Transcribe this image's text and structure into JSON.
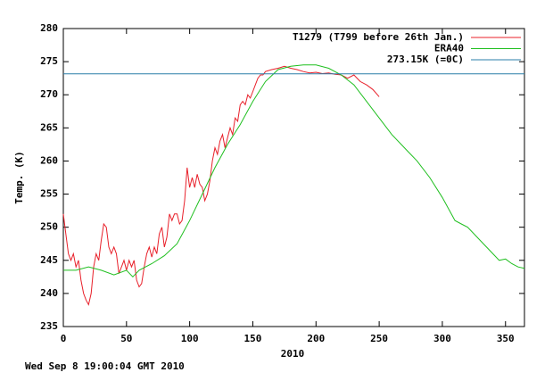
{
  "chart_data": {
    "type": "line",
    "xlabel": "2010",
    "ylabel": "Temp. (K)",
    "footer": "Wed Sep  8 19:00:04 GMT 2010",
    "xlim": [
      0,
      365
    ],
    "ylim": [
      235,
      280
    ],
    "xticks": [
      0,
      50,
      100,
      150,
      200,
      250,
      300,
      350
    ],
    "yticks": [
      235,
      240,
      245,
      250,
      255,
      260,
      265,
      270,
      275,
      280
    ],
    "grid": false,
    "legend": "top-right",
    "series": [
      {
        "name": "T1279 (T799 before 26th Jan.)",
        "color": "#e8202a",
        "x": [
          0,
          2,
          4,
          6,
          8,
          10,
          12,
          14,
          16,
          18,
          20,
          22,
          24,
          26,
          28,
          30,
          32,
          34,
          36,
          38,
          40,
          42,
          44,
          46,
          48,
          50,
          52,
          54,
          56,
          58,
          60,
          62,
          64,
          66,
          68,
          70,
          72,
          74,
          76,
          78,
          80,
          82,
          84,
          86,
          88,
          90,
          92,
          94,
          96,
          98,
          100,
          102,
          104,
          106,
          108,
          110,
          112,
          114,
          116,
          118,
          120,
          122,
          124,
          126,
          128,
          130,
          132,
          134,
          136,
          138,
          140,
          142,
          144,
          146,
          148,
          150,
          152,
          154,
          156,
          158,
          160,
          165,
          170,
          175,
          180,
          185,
          190,
          195,
          200,
          205,
          210,
          215,
          220,
          225,
          230,
          235,
          240,
          245,
          250
        ],
        "values": [
          252,
          249,
          246,
          245,
          246,
          244,
          245,
          242,
          240,
          239,
          238.3,
          240,
          244,
          246,
          245,
          248,
          250.5,
          250,
          247,
          246,
          247,
          246,
          243,
          244,
          245,
          243.5,
          245,
          244,
          245,
          242,
          241,
          241.5,
          244,
          246,
          247,
          245.5,
          247,
          246,
          249,
          250,
          247,
          248.5,
          252,
          251,
          252,
          252,
          250.5,
          251,
          254,
          259,
          256,
          257.5,
          256,
          258,
          256.5,
          256,
          254,
          255,
          257,
          260,
          262,
          261,
          263,
          264,
          262,
          263.5,
          265,
          264,
          266.5,
          266,
          268.5,
          269,
          268.5,
          270,
          269.5,
          270.5,
          271.5,
          272.5,
          273,
          273,
          273.5,
          273.8,
          274,
          274.3,
          274,
          273.8,
          273.5,
          273.3,
          273.4,
          273.2,
          273.3,
          273.1,
          273,
          272.5,
          273,
          272,
          271.5,
          270.8,
          269.7
        ]
      },
      {
        "name": "ERA40",
        "color": "#1fbf1f",
        "x": [
          0,
          10,
          20,
          30,
          40,
          50,
          55,
          60,
          70,
          80,
          90,
          100,
          110,
          120,
          130,
          140,
          150,
          160,
          170,
          180,
          190,
          200,
          210,
          220,
          230,
          240,
          250,
          260,
          270,
          280,
          290,
          300,
          310,
          315,
          320,
          330,
          340,
          345,
          350,
          355,
          360,
          365
        ],
        "values": [
          243.5,
          243.5,
          244,
          243.5,
          242.8,
          243.5,
          242.5,
          243.5,
          244.5,
          245.7,
          247.5,
          251,
          255,
          259,
          262.5,
          265.5,
          269,
          272,
          273.8,
          274.3,
          274.5,
          274.5,
          274,
          273,
          271.5,
          269,
          266.5,
          264,
          262,
          260,
          257.5,
          254.5,
          251,
          250.5,
          250,
          248,
          246,
          245,
          245.2,
          244.5,
          244,
          243.8
        ]
      },
      {
        "name": "273.15K (=0C)",
        "color": "#2a7fa8",
        "x": [
          0,
          365
        ],
        "values": [
          273.15,
          273.15
        ]
      }
    ]
  }
}
